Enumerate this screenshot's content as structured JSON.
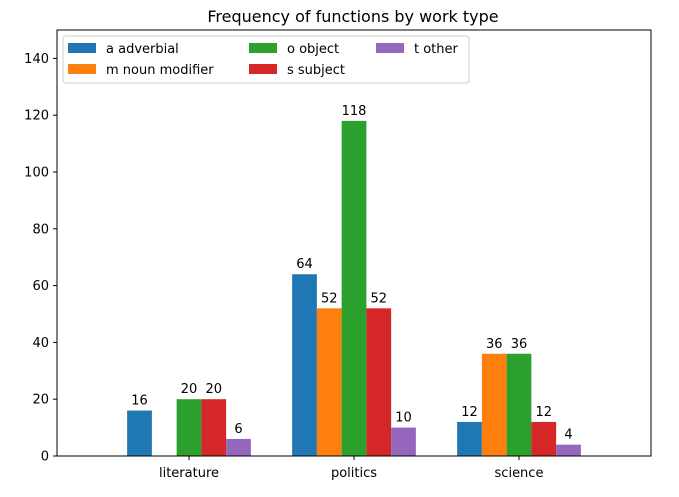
{
  "chart_data": {
    "type": "bar",
    "title": "Frequency of functions by work type",
    "xlabel": "",
    "ylabel": "",
    "categories": [
      "literature",
      "politics",
      "science"
    ],
    "ylim": [
      0,
      150
    ],
    "yticks": [
      0,
      20,
      40,
      60,
      80,
      100,
      120,
      140
    ],
    "grid": false,
    "legend_position": "top-left",
    "legend_columns": 3,
    "series": [
      {
        "name": "a adverbial",
        "color": "#1f77b4",
        "values": [
          16,
          64,
          12
        ]
      },
      {
        "name": "m noun modifier",
        "color": "#ff7f0e",
        "values": [
          0,
          52,
          36
        ]
      },
      {
        "name": "o object",
        "color": "#2ca02c",
        "values": [
          20,
          118,
          36
        ]
      },
      {
        "name": "s subject",
        "color": "#d62728",
        "values": [
          20,
          52,
          12
        ]
      },
      {
        "name": "t other",
        "color": "#9467bd",
        "values": [
          6,
          10,
          4
        ]
      }
    ]
  }
}
